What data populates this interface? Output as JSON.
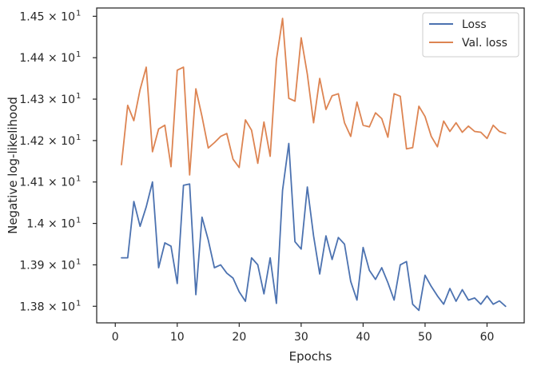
{
  "chart_data": {
    "type": "line",
    "xlabel": "Epochs",
    "ylabel": "Negative log-likelihood",
    "xlim": [
      -3,
      66
    ],
    "ylim": [
      13.76,
      14.52
    ],
    "x_ticks": [
      0,
      10,
      20,
      30,
      40,
      50,
      60
    ],
    "y_ticks": [
      {
        "value": 13.8,
        "mantissa": "1.38",
        "exponent": "1"
      },
      {
        "value": 13.9,
        "mantissa": "1.39",
        "exponent": "1"
      },
      {
        "value": 14.0,
        "mantissa": "1.4",
        "exponent": "1"
      },
      {
        "value": 14.1,
        "mantissa": "1.41",
        "exponent": "1"
      },
      {
        "value": 14.2,
        "mantissa": "1.42",
        "exponent": "1"
      },
      {
        "value": 14.3,
        "mantissa": "1.43",
        "exponent": "1"
      },
      {
        "value": 14.4,
        "mantissa": "1.44",
        "exponent": "1"
      },
      {
        "value": 14.5,
        "mantissa": "1.45",
        "exponent": "1"
      }
    ],
    "y_tick_base": "× 10",
    "grid": false,
    "legend_position": "top-right",
    "x": [
      1,
      2,
      3,
      4,
      5,
      6,
      7,
      8,
      9,
      10,
      11,
      12,
      13,
      14,
      15,
      16,
      17,
      18,
      19,
      20,
      21,
      22,
      23,
      24,
      25,
      26,
      27,
      28,
      29,
      30,
      31,
      32,
      33,
      34,
      35,
      36,
      37,
      38,
      39,
      40,
      41,
      42,
      43,
      44,
      45,
      46,
      47,
      48,
      49,
      50,
      51,
      52,
      53,
      54,
      55,
      56,
      57,
      58,
      59,
      60,
      61,
      62,
      63
    ],
    "series": [
      {
        "name": "Loss",
        "color": "#4c72b0",
        "values": [
          13.917,
          13.917,
          14.053,
          13.993,
          14.04,
          14.1,
          13.893,
          13.953,
          13.945,
          13.855,
          14.092,
          14.095,
          13.828,
          14.015,
          13.96,
          13.893,
          13.9,
          13.88,
          13.868,
          13.835,
          13.812,
          13.917,
          13.9,
          13.83,
          13.917,
          13.807,
          14.08,
          14.193,
          13.956,
          13.938,
          14.088,
          13.97,
          13.878,
          13.97,
          13.913,
          13.966,
          13.95,
          13.86,
          13.815,
          13.942,
          13.887,
          13.865,
          13.893,
          13.857,
          13.815,
          13.9,
          13.908,
          13.805,
          13.79,
          13.875,
          13.848,
          13.825,
          13.805,
          13.843,
          13.812,
          13.84,
          13.815,
          13.82,
          13.805,
          13.825,
          13.805,
          13.813,
          13.8
        ]
      },
      {
        "name": "Val. loss",
        "color": "#dd8452",
        "values": [
          14.142,
          14.285,
          14.248,
          14.323,
          14.377,
          14.173,
          14.228,
          14.237,
          14.137,
          14.37,
          14.377,
          14.117,
          14.325,
          14.258,
          14.182,
          14.195,
          14.21,
          14.217,
          14.155,
          14.135,
          14.25,
          14.225,
          14.145,
          14.245,
          14.162,
          14.395,
          14.495,
          14.302,
          14.295,
          14.448,
          14.36,
          14.243,
          14.35,
          14.275,
          14.308,
          14.313,
          14.243,
          14.21,
          14.293,
          14.237,
          14.233,
          14.267,
          14.253,
          14.208,
          14.313,
          14.307,
          14.18,
          14.183,
          14.283,
          14.258,
          14.21,
          14.185,
          14.247,
          14.222,
          14.243,
          14.22,
          14.235,
          14.222,
          14.22,
          14.205,
          14.237,
          14.222,
          14.217
        ]
      }
    ]
  }
}
